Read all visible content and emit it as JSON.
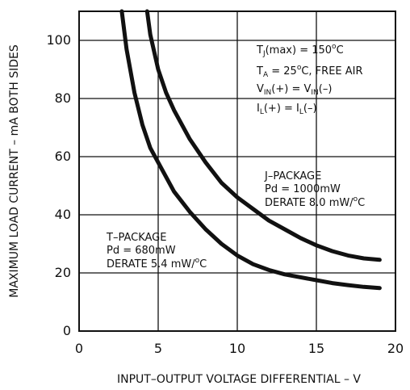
{
  "chart_data": {
    "type": "line",
    "xlabel": "INPUT–OUTPUT VOLTAGE DIFFERENTIAL – V",
    "ylabel": "MAXIMUM LOAD CURRENT – mA BOTH SIDES",
    "xlim": [
      0,
      20
    ],
    "ylim": [
      0,
      110
    ],
    "xticks": [
      0,
      5,
      10,
      15,
      20
    ],
    "yticks": [
      0,
      20,
      40,
      60,
      80,
      100
    ],
    "grid": true,
    "series": [
      {
        "key": "T-PACKAGE",
        "x": [
          2.7,
          3.0,
          3.5,
          4.0,
          4.5,
          5.0,
          6.0,
          7.0,
          8.0,
          9.0,
          10.0,
          11.0,
          12.0,
          13.0,
          14.0,
          15.0,
          16.0,
          17.0,
          18.0,
          19.0
        ],
        "y": [
          110,
          97,
          82,
          71,
          63,
          58,
          48,
          41,
          35,
          30,
          26,
          23,
          21,
          19.5,
          18.5,
          17.5,
          16.5,
          15.8,
          15.2,
          14.8
        ]
      },
      {
        "key": "J-PACKAGE",
        "x": [
          4.3,
          4.5,
          5.0,
          5.5,
          6.0,
          7.0,
          8.0,
          9.0,
          10.0,
          11.0,
          12.0,
          13.0,
          14.0,
          15.0,
          16.0,
          17.0,
          18.0,
          19.0
        ],
        "y": [
          110,
          102,
          90,
          82,
          76,
          66,
          58,
          51,
          46,
          42,
          38,
          35,
          32,
          29.5,
          27.5,
          26,
          25,
          24.5
        ]
      }
    ],
    "annotations": {
      "conditions": [
        {
          "prefix": "T",
          "sub": "J",
          "suffix": "(max) = 150",
          "sup": "o",
          "tail": "C"
        },
        {
          "prefix": "T",
          "sub": "A",
          "suffix": " = 25",
          "sup": "o",
          "tail": "C, FREE AIR"
        },
        {
          "prefix": "V",
          "sub": "IN",
          "suffix": "(+) = V",
          "sub2": "IN",
          "tail": "(–)"
        },
        {
          "prefix": "I",
          "sub": "L",
          "suffix": "(+) = I",
          "sub2": "L",
          "tail": "(–)"
        }
      ],
      "j_package": {
        "name": "J–PACKAGE",
        "pd": "Pd = 1000mW",
        "derate": "DERATE 8.0 mW/",
        "derate_sup": "o",
        "derate_tail": "C"
      },
      "t_package": {
        "name": "T–PACKAGE",
        "pd": "Pd = 680mW",
        "derate": "DERATE 5.4 mW/",
        "derate_sup": "o",
        "derate_tail": "C"
      }
    },
    "colors": {
      "line": "#111111",
      "grid": "#111111",
      "background": "#ffffff"
    }
  }
}
